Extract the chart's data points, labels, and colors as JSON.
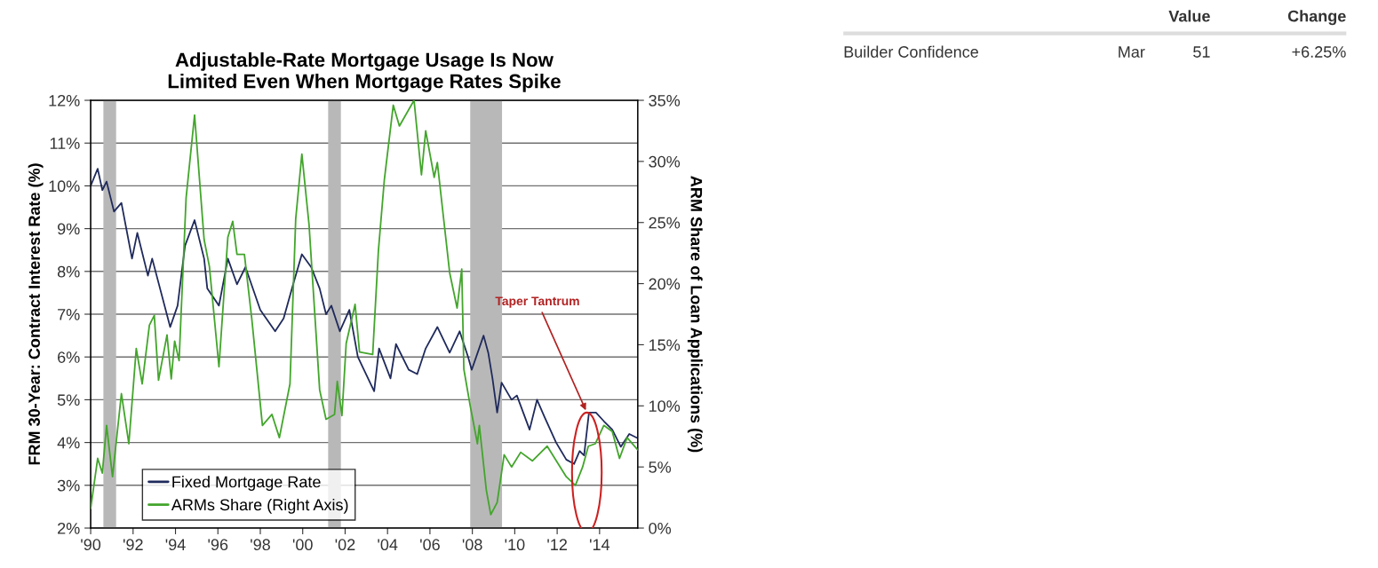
{
  "chart_data": [
    {
      "type": "line",
      "title": "Adjustable-Rate Mortgage Usage Is Now\nLimited Even When Mortgage Rates Spike",
      "ylabel": "FRM 30-Year: Contract Interest Rate (%)",
      "y2label": "ARM Share of Loan Applications (%)",
      "series": [
        {
          "name": "Fixed Mortgage Rate",
          "color": "#1f2a5c",
          "x": [
            1990.0,
            1990.33,
            1990.55,
            1990.75,
            1991.1,
            1991.45,
            1991.95,
            1992.2,
            1992.7,
            1992.9,
            1993.75,
            1994.1,
            1994.45,
            1994.9,
            1995.35,
            1995.5,
            1996.05,
            1996.47,
            1996.9,
            1997.3,
            1998.0,
            1998.7,
            1999.1,
            1999.55,
            1999.96,
            2000.4,
            2000.8,
            2001.1,
            2001.35,
            2001.75,
            2002.2,
            2002.6,
            2003.37,
            2003.6,
            2004.14,
            2004.4,
            2005.0,
            2005.4,
            2005.8,
            2006.35,
            2006.93,
            2007.4,
            2007.8,
            2007.97,
            2008.53,
            2008.75,
            2008.95,
            2009.17,
            2009.38,
            2009.85,
            2010.1,
            2010.7,
            2011.05,
            2011.4,
            2011.95,
            2012.43,
            2012.8,
            2013.06,
            2013.27,
            2013.5,
            2013.83,
            2014.2,
            2014.6,
            2015.0,
            2015.4,
            2015.8
          ],
          "values": [
            10.0,
            10.4,
            9.9,
            10.1,
            9.4,
            9.6,
            8.3,
            8.9,
            7.9,
            8.3,
            6.7,
            7.2,
            8.6,
            9.2,
            8.3,
            7.6,
            7.2,
            8.3,
            7.7,
            8.1,
            7.1,
            6.6,
            6.9,
            7.7,
            8.4,
            8.1,
            7.6,
            7.0,
            7.2,
            6.6,
            7.1,
            6.0,
            5.2,
            6.2,
            5.5,
            6.3,
            5.7,
            5.6,
            6.2,
            6.7,
            6.1,
            6.6,
            6.0,
            5.7,
            6.5,
            6.1,
            5.5,
            4.7,
            5.4,
            5.0,
            5.1,
            4.3,
            5.0,
            4.6,
            4.0,
            3.6,
            3.5,
            3.8,
            3.7,
            4.7,
            4.7,
            4.5,
            4.3,
            3.9,
            4.2,
            4.1
          ]
        },
        {
          "name": "ARMs Share (Right Axis)",
          "color": "#43a52c",
          "axis": "y2",
          "x": [
            1990.0,
            1990.33,
            1990.55,
            1990.75,
            1991.03,
            1991.45,
            1991.8,
            1992.15,
            1992.43,
            1992.77,
            1993.0,
            1993.2,
            1993.6,
            1993.8,
            1993.96,
            1994.17,
            1994.5,
            1994.9,
            1995.35,
            1995.6,
            1996.05,
            1996.47,
            1996.7,
            1996.9,
            1997.25,
            1997.6,
            1998.1,
            1998.55,
            1998.9,
            1999.4,
            1999.67,
            1999.96,
            2000.3,
            2000.8,
            2001.1,
            2001.5,
            2001.63,
            2001.85,
            2002.05,
            2002.47,
            2002.68,
            2003.3,
            2003.57,
            2003.85,
            2004.27,
            2004.56,
            2005.25,
            2005.6,
            2005.8,
            2006.2,
            2006.35,
            2006.93,
            2007.28,
            2007.5,
            2007.6,
            2007.9,
            2008.24,
            2008.33,
            2008.66,
            2008.87,
            2009.17,
            2009.5,
            2009.85,
            2010.28,
            2010.83,
            2011.53,
            2012.43,
            2012.86,
            2013.2,
            2013.47,
            2013.8,
            2014.2,
            2014.6,
            2014.94,
            2015.3,
            2015.8
          ],
          "values": [
            1.6,
            5.7,
            4.5,
            8.4,
            4.2,
            11.0,
            6.9,
            14.7,
            11.8,
            16.6,
            17.4,
            12.1,
            15.8,
            12.2,
            15.3,
            13.7,
            27.0,
            33.8,
            23.6,
            21.4,
            13.2,
            23.8,
            25.1,
            22.4,
            22.4,
            17.1,
            8.4,
            9.3,
            7.4,
            11.8,
            25.3,
            30.6,
            24.8,
            11.3,
            8.9,
            9.3,
            12.0,
            9.2,
            15.1,
            18.3,
            14.4,
            14.2,
            22.7,
            28.5,
            34.6,
            32.9,
            35.0,
            28.9,
            32.5,
            28.7,
            29.9,
            20.9,
            18.0,
            21.2,
            13.0,
            10.0,
            6.9,
            8.4,
            3.1,
            1.1,
            2.1,
            6.0,
            5.0,
            6.2,
            5.5,
            6.7,
            4.2,
            3.5,
            5.0,
            6.7,
            6.9,
            8.4,
            7.9,
            5.7,
            7.4,
            6.4
          ]
        }
      ],
      "xlim": [
        1990,
        2015.8
      ],
      "xticks": [
        {
          "value": 1990,
          "label": "'90"
        },
        {
          "value": 1992,
          "label": "'92"
        },
        {
          "value": 1994,
          "label": "'94"
        },
        {
          "value": 1996,
          "label": "'96"
        },
        {
          "value": 1998,
          "label": "'98"
        },
        {
          "value": 2000,
          "label": "'00"
        },
        {
          "value": 2002,
          "label": "'02"
        },
        {
          "value": 2004,
          "label": "'04"
        },
        {
          "value": 2006,
          "label": "'06"
        },
        {
          "value": 2008,
          "label": "'08"
        },
        {
          "value": 2010,
          "label": "'10"
        },
        {
          "value": 2012,
          "label": "'12"
        },
        {
          "value": 2014,
          "label": "'14"
        }
      ],
      "ylim": [
        2,
        12
      ],
      "yticks": [
        {
          "value": 2,
          "label": "2%"
        },
        {
          "value": 3,
          "label": "3%"
        },
        {
          "value": 4,
          "label": "4%"
        },
        {
          "value": 5,
          "label": "5%"
        },
        {
          "value": 6,
          "label": "6%"
        },
        {
          "value": 7,
          "label": "7%"
        },
        {
          "value": 8,
          "label": "8%"
        },
        {
          "value": 9,
          "label": "9%"
        },
        {
          "value": 10,
          "label": "10%"
        },
        {
          "value": 11,
          "label": "11%"
        },
        {
          "value": 12,
          "label": "12%"
        }
      ],
      "y2lim": [
        0,
        35
      ],
      "y2ticks": [
        {
          "value": 0,
          "label": "0%"
        },
        {
          "value": 5,
          "label": "5%"
        },
        {
          "value": 10,
          "label": "10%"
        },
        {
          "value": 15,
          "label": "15%"
        },
        {
          "value": 20,
          "label": "20%"
        },
        {
          "value": 25,
          "label": "25%"
        },
        {
          "value": 30,
          "label": "30%"
        },
        {
          "value": 35,
          "label": "35%"
        }
      ],
      "bands": [
        {
          "axis": "x",
          "from": 1990.6,
          "to": 1991.2,
          "color": "#b8b8b8"
        },
        {
          "axis": "x",
          "from": 2001.2,
          "to": 2001.8,
          "color": "#b8b8b8"
        },
        {
          "axis": "x",
          "from": 2007.9,
          "to": 2009.4,
          "color": "#b8b8b8"
        }
      ],
      "annotations": [
        {
          "text": "Taper Tantrum",
          "x": 2013.4,
          "y": 4.7
        }
      ],
      "grid": "y",
      "legend": "bottom left",
      "line_style": "solid",
      "marker": "none"
    },
    {
      "type": "other",
      "annotations": [
        "Value",
        "Change",
        "Builder Confidence",
        "Mar",
        "51",
        "+6.25%"
      ]
    }
  ]
}
